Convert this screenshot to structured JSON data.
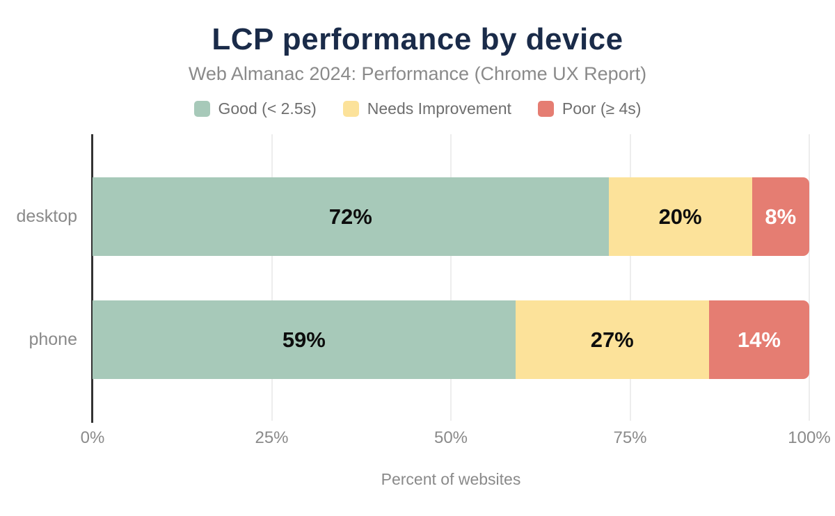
{
  "chart_data": {
    "type": "bar",
    "stacked": true,
    "orientation": "horizontal",
    "title": "LCP performance by device",
    "subtitle": "Web Almanac 2024: Performance (Chrome UX Report)",
    "xlabel": "Percent of websites",
    "categories": [
      "desktop",
      "phone"
    ],
    "series": [
      {
        "name": "Good (< 2.5s)",
        "color": "#a7c9b9",
        "label_color": "#0d0d0d",
        "values": [
          72,
          59
        ]
      },
      {
        "name": "Needs Improvement",
        "color": "#fce29a",
        "label_color": "#0d0d0d",
        "values": [
          20,
          27
        ]
      },
      {
        "name": "Poor (≥ 4s)",
        "color": "#e57d72",
        "label_color": "#ffffff",
        "values": [
          8,
          14
        ]
      }
    ],
    "xlim": [
      0,
      100
    ],
    "xticks": [
      "0%",
      "25%",
      "50%",
      "75%",
      "100%"
    ],
    "value_label_suffix": "%",
    "grid": true,
    "legend_position": "top",
    "colors": {
      "title": "#1a2b49",
      "subtitle": "#8a8a8a",
      "axis_line": "#333333",
      "gridline": "#ededed",
      "tick_label": "#8a8a8a"
    }
  }
}
